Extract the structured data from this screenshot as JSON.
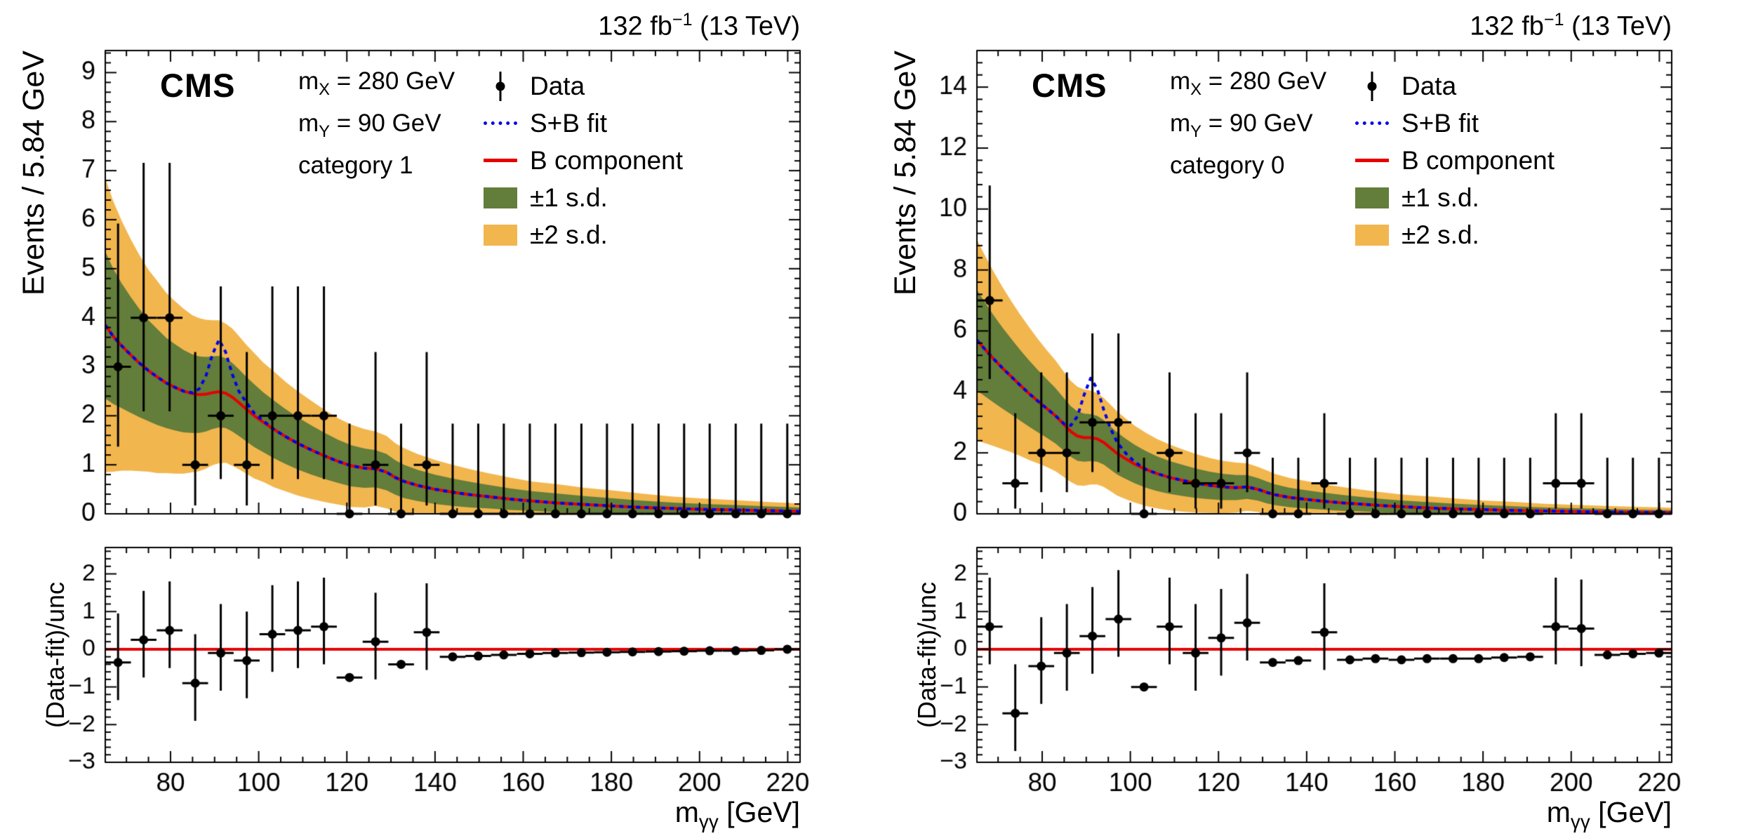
{
  "header": {
    "lumi_prefix": "132 fb",
    "lumi_sup": "−1",
    "lumi_suffix": " (13 TeV)",
    "cms": "CMS"
  },
  "labels": {
    "ylabel_main": "Events / 5.84 GeV",
    "ylabel_ratio": "(Data-fit)/unc",
    "xlabel_base": "m",
    "xlabel_sub": "γγ",
    "xlabel_rest": " [GeV]"
  },
  "annotations": {
    "mx_base": "m",
    "mx_sub": "X",
    "mx_rest": " = 280 GeV",
    "my_base": "m",
    "my_sub": "Y",
    "my_rest": " = 90 GeV"
  },
  "panels": [
    {
      "category": "category 1"
    },
    {
      "category": "category 0"
    }
  ],
  "legend": {
    "entries": [
      {
        "label": "Data"
      },
      {
        "label": "S+B fit"
      },
      {
        "label": "B component"
      },
      {
        "label": "±1 s.d."
      },
      {
        "label": "±2 s.d."
      }
    ]
  },
  "colors": {
    "sb_fit": "#0000ee",
    "b_component": "#e60000",
    "band_1sd": "#637d3a",
    "band_2sd": "#f2b64e",
    "data": "#000000",
    "ratio_line": "#e60000"
  },
  "chart_data": [
    {
      "id": "category 1",
      "type": "line",
      "title": "132 fb−1 (13 TeV)",
      "xlabel": "mγγ [GeV]",
      "xlim": [
        65.2,
        222.8
      ],
      "xticks": [
        80,
        100,
        120,
        140,
        160,
        180,
        200,
        220
      ],
      "x_major_step": 20,
      "x_minor_step": 5,
      "bin_half_width": 2.92,
      "main": {
        "ylabel": "Events / 5.84 GeV",
        "ylim": [
          0,
          9.45
        ],
        "y_major_step": 1,
        "y_minor_step": 0.2,
        "data_x": [
          68.1,
          73.9,
          79.8,
          85.6,
          91.4,
          97.3,
          103.1,
          108.9,
          114.8,
          120.6,
          126.5,
          132.3,
          138.1,
          144.0,
          149.8,
          155.6,
          161.5,
          167.3,
          173.2,
          179.0,
          184.8,
          190.7,
          196.5,
          202.3,
          208.2,
          214.0,
          219.9
        ],
        "data_y": [
          3,
          4,
          4,
          1,
          2,
          1,
          2,
          2,
          2,
          0,
          1,
          0,
          1,
          0,
          0,
          0,
          0,
          0,
          0,
          0,
          0,
          0,
          0,
          0,
          0,
          0,
          0
        ],
        "curve_x": [
          65.2,
          67,
          69,
          71,
          73,
          75,
          77,
          79,
          81,
          83,
          85,
          86.5,
          88,
          89.5,
          91,
          92.5,
          94,
          95.5,
          97,
          99,
          101,
          103.5,
          106,
          109,
          112,
          115,
          118,
          121,
          124,
          126.5,
          129,
          131,
          133,
          136,
          140,
          144,
          148,
          152,
          157,
          162,
          168,
          174,
          180,
          187,
          194,
          201,
          208,
          215,
          222.8
        ],
        "b_fit": [
          3.85,
          3.62,
          3.42,
          3.24,
          3.07,
          2.92,
          2.79,
          2.67,
          2.58,
          2.5,
          2.45,
          2.43,
          2.44,
          2.47,
          2.49,
          2.46,
          2.38,
          2.27,
          2.15,
          2.0,
          1.87,
          1.72,
          1.58,
          1.43,
          1.3,
          1.18,
          1.07,
          0.98,
          0.93,
          0.92,
          0.85,
          0.74,
          0.66,
          0.58,
          0.5,
          0.44,
          0.39,
          0.35,
          0.3,
          0.26,
          0.22,
          0.19,
          0.16,
          0.13,
          0.11,
          0.09,
          0.08,
          0.065,
          0.05
        ],
        "sb_fit": [
          3.85,
          3.62,
          3.42,
          3.24,
          3.07,
          2.92,
          2.79,
          2.67,
          2.58,
          2.5,
          2.47,
          2.55,
          2.8,
          3.25,
          3.55,
          3.3,
          2.85,
          2.5,
          2.3,
          2.05,
          1.9,
          1.72,
          1.58,
          1.43,
          1.3,
          1.18,
          1.07,
          0.98,
          0.93,
          0.92,
          0.85,
          0.74,
          0.66,
          0.58,
          0.5,
          0.44,
          0.39,
          0.35,
          0.3,
          0.26,
          0.22,
          0.19,
          0.16,
          0.13,
          0.11,
          0.09,
          0.08,
          0.065,
          0.05
        ],
        "sigma1": [
          1.5,
          1.38,
          1.27,
          1.18,
          1.1,
          1.03,
          0.98,
          0.92,
          0.88,
          0.84,
          0.8,
          0.78,
          0.76,
          0.74,
          0.73,
          0.71,
          0.7,
          0.68,
          0.66,
          0.64,
          0.61,
          0.59,
          0.56,
          0.53,
          0.5,
          0.47,
          0.44,
          0.42,
          0.4,
          0.38,
          0.37,
          0.35,
          0.34,
          0.32,
          0.3,
          0.28,
          0.26,
          0.24,
          0.22,
          0.2,
          0.19,
          0.17,
          0.16,
          0.14,
          0.12,
          0.11,
          0.1,
          0.09,
          0.08
        ]
      },
      "ratio": {
        "ylabel": "(Data-fit)/unc",
        "ylim": [
          -3,
          2.7
        ],
        "y_major_step": 1,
        "y_minor_step": 0.2,
        "err_low": 1.0,
        "err_up": 1.3,
        "values": [
          -0.35,
          0.25,
          0.5,
          -0.9,
          -0.1,
          -0.3,
          0.4,
          0.5,
          0.6,
          -0.75,
          0.2,
          -0.4,
          0.45,
          -0.2,
          -0.18,
          -0.15,
          -0.12,
          -0.1,
          -0.09,
          -0.08,
          -0.07,
          -0.06,
          -0.05,
          -0.04,
          -0.04,
          -0.03,
          0.0
        ]
      }
    },
    {
      "id": "category 0",
      "type": "line",
      "title": "132 fb−1 (13 TeV)",
      "xlabel": "mγγ [GeV]",
      "xlim": [
        65.2,
        222.8
      ],
      "xticks": [
        80,
        100,
        120,
        140,
        160,
        180,
        200,
        220
      ],
      "x_major_step": 20,
      "x_minor_step": 5,
      "bin_half_width": 2.92,
      "main": {
        "ylabel": "Events / 5.84 GeV",
        "ylim": [
          0,
          15.2
        ],
        "y_major_step": 2,
        "y_minor_step": 0.4,
        "data_x": [
          68.1,
          73.9,
          79.8,
          85.6,
          91.4,
          97.3,
          103.1,
          108.9,
          114.8,
          120.6,
          126.5,
          132.3,
          138.1,
          144.0,
          149.8,
          155.6,
          161.5,
          167.3,
          173.2,
          179.0,
          184.8,
          190.7,
          196.5,
          202.3,
          208.2,
          214.0,
          219.9
        ],
        "data_y": [
          7,
          1,
          2,
          2,
          3,
          3,
          0,
          2,
          1,
          1,
          2,
          0,
          0,
          1,
          0,
          0,
          0,
          0,
          0,
          0,
          0,
          0,
          1,
          1,
          0,
          0,
          0
        ],
        "curve_x": [
          65.2,
          67,
          69,
          71,
          73,
          75,
          77,
          79,
          81,
          83,
          85,
          86.5,
          88,
          89.5,
          91,
          92.5,
          94,
          95.5,
          97,
          99,
          101,
          103.5,
          106,
          109,
          112,
          115,
          118,
          121,
          124,
          126.5,
          129,
          131,
          133,
          136,
          140,
          144,
          148,
          152,
          157,
          162,
          168,
          174,
          180,
          187,
          194,
          201,
          208,
          215,
          222.8
        ],
        "b_fit": [
          5.7,
          5.4,
          5.08,
          4.78,
          4.5,
          4.22,
          3.95,
          3.7,
          3.46,
          3.22,
          2.92,
          2.7,
          2.55,
          2.5,
          2.5,
          2.46,
          2.34,
          2.16,
          1.98,
          1.8,
          1.63,
          1.46,
          1.32,
          1.19,
          1.09,
          1.0,
          0.93,
          0.88,
          0.86,
          0.88,
          0.8,
          0.7,
          0.62,
          0.54,
          0.47,
          0.41,
          0.36,
          0.32,
          0.27,
          0.23,
          0.19,
          0.16,
          0.14,
          0.11,
          0.09,
          0.075,
          0.06,
          0.05,
          0.04
        ],
        "sb_fit": [
          5.7,
          5.4,
          5.08,
          4.78,
          4.5,
          4.22,
          3.95,
          3.7,
          3.46,
          3.22,
          2.95,
          2.9,
          3.2,
          3.9,
          4.45,
          4.1,
          3.4,
          2.8,
          2.35,
          1.98,
          1.7,
          1.46,
          1.32,
          1.19,
          1.09,
          1.0,
          0.93,
          0.88,
          0.86,
          0.88,
          0.8,
          0.7,
          0.62,
          0.54,
          0.47,
          0.41,
          0.36,
          0.32,
          0.27,
          0.23,
          0.19,
          0.16,
          0.14,
          0.11,
          0.09,
          0.075,
          0.06,
          0.05,
          0.04
        ],
        "sigma1": [
          1.65,
          1.54,
          1.43,
          1.33,
          1.24,
          1.16,
          1.09,
          1.02,
          0.96,
          0.91,
          0.86,
          0.83,
          0.81,
          0.79,
          0.77,
          0.75,
          0.73,
          0.71,
          0.69,
          0.66,
          0.63,
          0.6,
          0.57,
          0.54,
          0.51,
          0.48,
          0.45,
          0.43,
          0.41,
          0.39,
          0.37,
          0.36,
          0.34,
          0.32,
          0.3,
          0.28,
          0.26,
          0.24,
          0.22,
          0.2,
          0.19,
          0.17,
          0.15,
          0.14,
          0.12,
          0.11,
          0.1,
          0.09,
          0.08
        ]
      },
      "ratio": {
        "ylabel": "(Data-fit)/unc",
        "ylim": [
          -3,
          2.7
        ],
        "y_major_step": 1,
        "y_minor_step": 0.2,
        "err_low": 1.0,
        "err_up": 1.3,
        "values": [
          0.6,
          -1.7,
          -0.45,
          -0.1,
          0.35,
          0.8,
          -1.0,
          0.6,
          -0.1,
          0.3,
          0.7,
          -0.35,
          -0.3,
          0.45,
          -0.28,
          -0.25,
          -0.28,
          -0.25,
          -0.25,
          -0.25,
          -0.22,
          -0.2,
          0.6,
          0.55,
          -0.15,
          -0.12,
          -0.1
        ]
      }
    }
  ]
}
